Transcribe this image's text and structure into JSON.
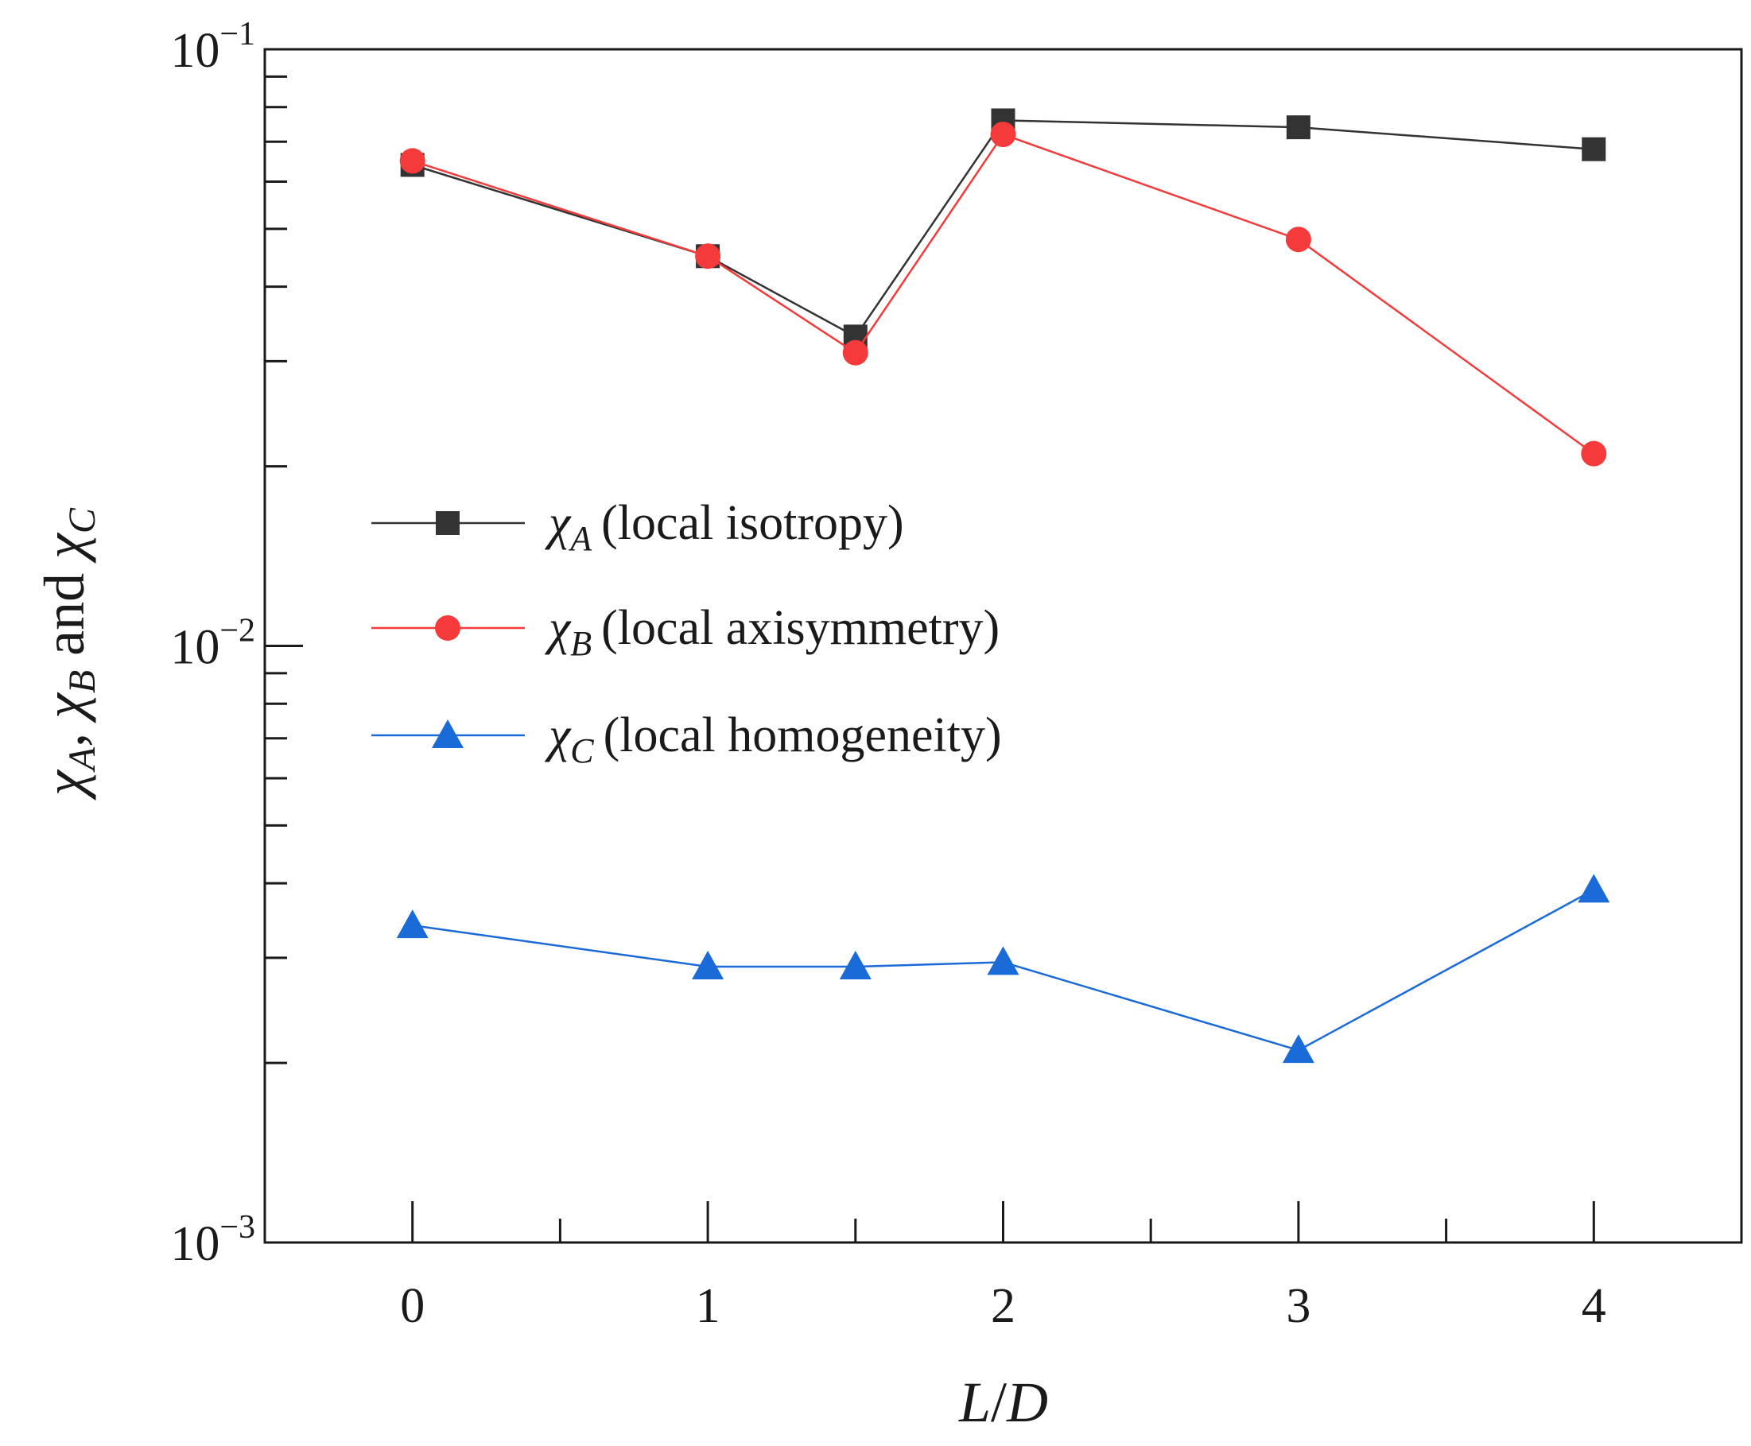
{
  "chart_data": {
    "type": "line",
    "xlabel": {
      "main": "L",
      "sep": "/",
      "tail": "D"
    },
    "ylabel": {
      "chi": "χ",
      "sub_a": "A",
      "sep1": ", ",
      "sub_b": "B",
      "conj": " and ",
      "sub_c": "C"
    },
    "xlim": [
      -0.5,
      4.5
    ],
    "ylim": [
      0.001,
      0.1
    ],
    "yscale": "log",
    "grid": false,
    "legend_position": "center-left",
    "x_ticks": [
      "0",
      "1",
      "2",
      "3",
      "4"
    ],
    "x_ticks_values": [
      0,
      1,
      2,
      3,
      4
    ],
    "x_minor_ticks_values": [
      0.5,
      1.5,
      2.5,
      3.5
    ],
    "y_ticks": [
      {
        "value": 0.1,
        "base": "10",
        "exp": "−1"
      },
      {
        "value": 0.01,
        "base": "10",
        "exp": "−2"
      },
      {
        "value": 0.001,
        "base": "10",
        "exp": "−3"
      }
    ],
    "series": [
      {
        "name": "(local isotropy)",
        "symbol": "χ",
        "subscript": "A",
        "color": "#333333",
        "marker": "square",
        "x": [
          0,
          1,
          1.5,
          2,
          3,
          4
        ],
        "y": [
          0.064,
          0.045,
          0.033,
          0.076,
          0.074,
          0.068
        ]
      },
      {
        "name": "(local axisymmetry)",
        "symbol": "χ",
        "subscript": "B",
        "color": "#f43a3a",
        "marker": "circle",
        "x": [
          0,
          1,
          1.5,
          2,
          3,
          4
        ],
        "y": [
          0.065,
          0.045,
          0.031,
          0.072,
          0.048,
          0.021
        ]
      },
      {
        "name": "(local homogeneity)",
        "symbol": "χ",
        "subscript": "C",
        "color": "#1a6ad8",
        "marker": "triangle",
        "x": [
          0,
          1,
          1.5,
          2,
          3,
          4
        ],
        "y": [
          0.0034,
          0.0029,
          0.0029,
          0.00295,
          0.0021,
          0.0039
        ]
      }
    ]
  }
}
